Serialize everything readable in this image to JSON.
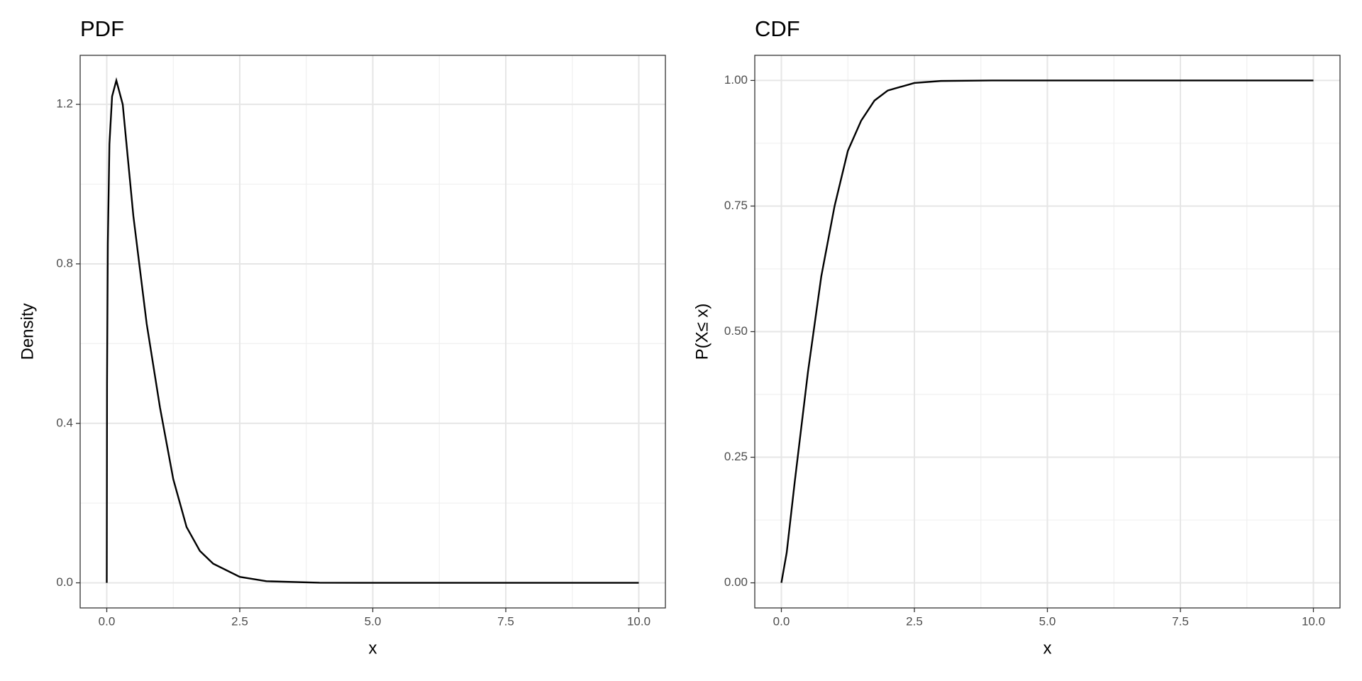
{
  "chart_data": [
    {
      "type": "line",
      "title": "PDF",
      "x_label": "x",
      "y_label": "Density",
      "x": [
        0,
        0.005,
        0.02,
        0.05,
        0.1,
        0.18,
        0.3,
        0.5,
        0.75,
        1,
        1.25,
        1.5,
        1.75,
        2,
        2.5,
        3,
        4,
        5,
        7.5,
        10
      ],
      "values": [
        0,
        0.5,
        0.85,
        1.1,
        1.22,
        1.26,
        1.2,
        0.92,
        0.65,
        0.44,
        0.26,
        0.14,
        0.08,
        0.048,
        0.015,
        0.004,
        0.0003,
        0,
        0,
        0
      ],
      "color": "#000000",
      "xlim": [
        -0.5,
        10.5
      ],
      "ylim": [
        -0.063,
        1.323
      ],
      "xticks": [
        {
          "value": 0,
          "label": "0.0"
        },
        2.5,
        {
          "value": 5,
          "label": "5.0"
        },
        7.5,
        {
          "value": 10,
          "label": "10.0"
        }
      ],
      "yticks": [
        {
          "value": 0,
          "label": "0.0"
        },
        0.4,
        0.8,
        1.2
      ],
      "grid": true
    },
    {
      "type": "line",
      "title": "CDF",
      "x_label": "x",
      "y_label": "P(X≤ x)",
      "x": [
        0,
        0.1,
        0.25,
        0.5,
        0.75,
        1,
        1.25,
        1.5,
        1.75,
        2,
        2.5,
        3,
        4,
        5,
        7.5,
        10
      ],
      "values": [
        0,
        0.06,
        0.2,
        0.42,
        0.61,
        0.75,
        0.86,
        0.92,
        0.96,
        0.98,
        0.995,
        0.999,
        1,
        1,
        1,
        1
      ],
      "color": "#000000",
      "xlim": [
        -0.5,
        10.5
      ],
      "ylim": [
        -0.05,
        1.05
      ],
      "xticks": [
        {
          "value": 0,
          "label": "0.0"
        },
        2.5,
        {
          "value": 5,
          "label": "5.0"
        },
        7.5,
        {
          "value": 10,
          "label": "10.0"
        }
      ],
      "yticks": [
        {
          "value": 0,
          "label": "0.00"
        },
        0.25,
        {
          "value": 0.5,
          "label": "0.50"
        },
        0.75,
        {
          "value": 1,
          "label": "1.00"
        }
      ],
      "grid": true
    }
  ]
}
